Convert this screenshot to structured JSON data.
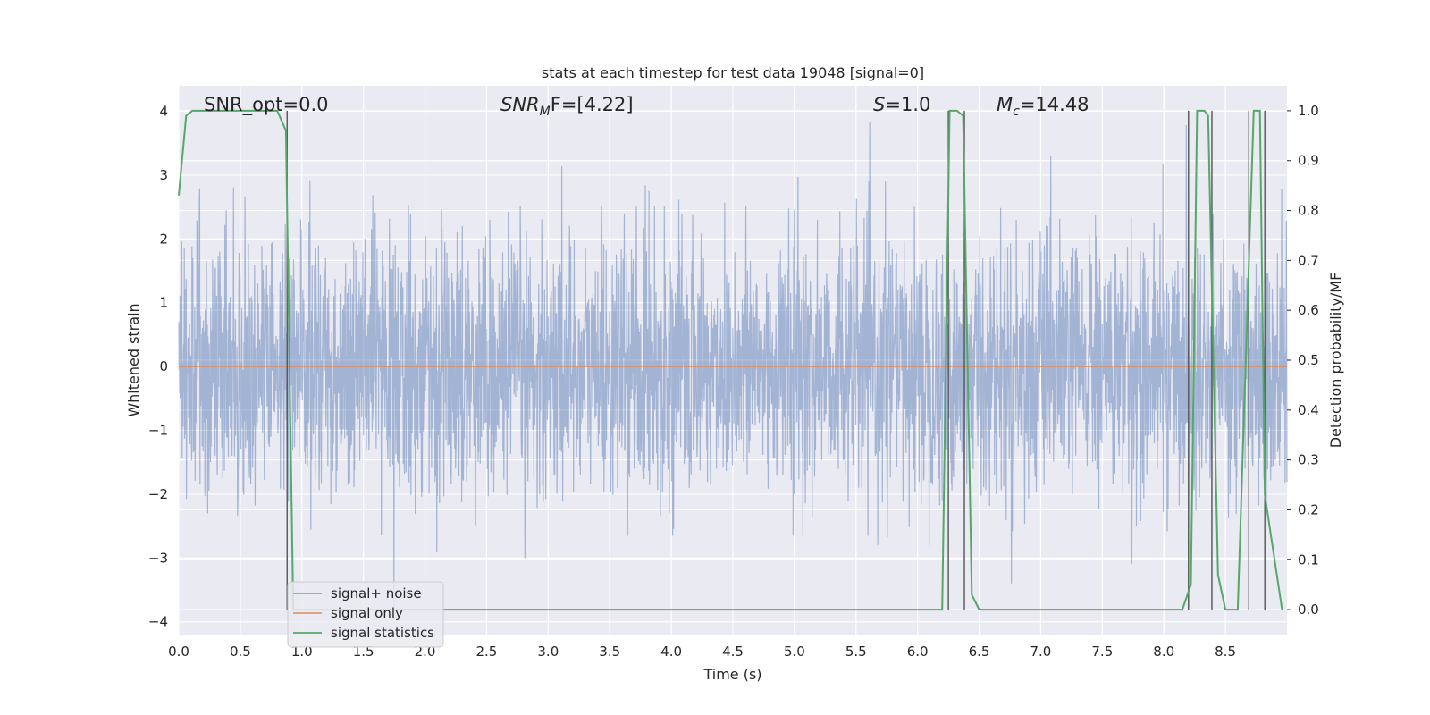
{
  "chart_data": {
    "type": "line",
    "title": "stats at each timestep for test data 19048 [signal=0]",
    "xlabel": "Time (s)",
    "ylabel_left": "Whitened strain",
    "ylabel_right": "Detection probability/MF",
    "xlim": [
      0.0,
      9.0
    ],
    "ylim_left": [
      -4.2,
      4.4
    ],
    "ylim_right": [
      -0.05,
      1.05
    ],
    "x_ticks": [
      "0.0",
      "0.5",
      "1.0",
      "1.5",
      "2.0",
      "2.5",
      "3.0",
      "3.5",
      "4.0",
      "4.5",
      "5.0",
      "5.5",
      "6.0",
      "6.5",
      "7.0",
      "7.5",
      "8.0",
      "8.5"
    ],
    "y_ticks_left": [
      "−4",
      "−3",
      "−2",
      "−1",
      "0",
      "1",
      "2",
      "3",
      "4"
    ],
    "y_ticks_right": [
      "0.0",
      "0.1",
      "0.2",
      "0.3",
      "0.4",
      "0.5",
      "0.6",
      "0.7",
      "0.8",
      "0.9",
      "1.0"
    ],
    "grid": true,
    "legend_position": "lower-left",
    "annotations": {
      "snr_opt": "SNR_opt=0.0",
      "snr_mf_main": "SNR",
      "snr_mf_sub": "M",
      "snr_mf_rest": "F=[4.22]",
      "s_main": "S",
      "s_rest": "=1.0",
      "mc_main": "M",
      "mc_sub": "c",
      "mc_rest": "=14.48"
    },
    "series": [
      {
        "name": "signal+ noise",
        "color": "#4c72b0",
        "axis": "left",
        "description_level": "noise amplitude ~1.0 std, extremes to ±4"
      },
      {
        "name": "signal only",
        "color": "#dd8452",
        "axis": "left",
        "x": [
          0.0,
          9.0
        ],
        "y": [
          0.0,
          0.0
        ]
      },
      {
        "name": "signal statistics",
        "color": "#55a868",
        "axis": "right",
        "x": [
          0.0,
          0.06,
          0.11,
          0.8,
          0.87,
          0.93,
          1.0,
          6.2,
          6.26,
          6.32,
          6.37,
          6.44,
          6.5,
          8.15,
          8.22,
          8.27,
          8.33,
          8.36,
          8.44,
          8.5,
          8.6,
          8.73,
          8.78,
          8.82,
          8.96
        ],
        "y": [
          0.83,
          0.99,
          1.0,
          1.0,
          0.96,
          0.0,
          0.0,
          0.0,
          1.0,
          1.0,
          0.99,
          0.03,
          0.0,
          0.0,
          0.05,
          1.0,
          1.0,
          0.99,
          0.07,
          0.0,
          0.0,
          1.0,
          1.0,
          0.23,
          0.0
        ]
      }
    ],
    "markers_x": [
      0.88,
      6.25,
      6.38,
      8.2,
      8.39,
      8.69,
      8.82
    ],
    "colors": {
      "background": "#eaeaf2",
      "grid": "#ffffff",
      "noise": "#4c72b0",
      "signal": "#dd8452",
      "statistics": "#55a868",
      "marker": "#555555"
    }
  }
}
